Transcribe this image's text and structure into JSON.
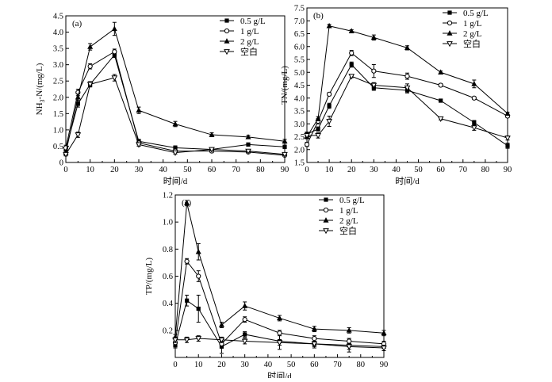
{
  "chart_data": [
    {
      "type": "line",
      "panel_label": "(a)",
      "xlabel": "时间/d",
      "ylabel": "NH3-N/(mg/L)",
      "ylabel_parts": [
        "NH",
        "3",
        "-N/(mg/L)"
      ],
      "xlim": [
        0,
        90
      ],
      "ylim": [
        0,
        4.5
      ],
      "xticks": [
        0,
        10,
        20,
        30,
        40,
        50,
        60,
        70,
        80,
        90
      ],
      "yticks": [
        0,
        0.5,
        1.0,
        1.5,
        2.0,
        2.5,
        3.0,
        3.5,
        4.0,
        4.5
      ],
      "ytick_labels": [
        "0",
        "0.5",
        "1.0",
        "1.5",
        "2.0",
        "2.5",
        "3.0",
        "3.5",
        "4.0",
        "4.5"
      ],
      "legend": "top-right",
      "x": [
        0,
        5,
        10,
        20,
        30,
        45,
        60,
        75,
        90
      ],
      "series": [
        {
          "name": "0.5 g/L",
          "marker": "square",
          "values": [
            0.4,
            1.8,
            2.4,
            3.3,
            0.65,
            0.45,
            0.4,
            0.55,
            0.48
          ],
          "errors": [
            0.08,
            0.1,
            0.08,
            0.08,
            0.06,
            0.06,
            0.05,
            0.05,
            0.05
          ]
        },
        {
          "name": "1 g/L",
          "marker": "circle",
          "values": [
            0.45,
            2.15,
            2.95,
            3.4,
            0.6,
            0.35,
            0.35,
            0.32,
            0.22
          ],
          "errors": [
            0.08,
            0.1,
            0.08,
            0.08,
            0.06,
            0.05,
            0.05,
            0.04,
            0.04
          ]
        },
        {
          "name": "2 g/L",
          "marker": "triangle-up",
          "values": [
            0.3,
            2.0,
            3.55,
            4.1,
            1.6,
            1.18,
            0.85,
            0.78,
            0.65
          ],
          "errors": [
            0.08,
            0.1,
            0.1,
            0.2,
            0.1,
            0.08,
            0.06,
            0.05,
            0.06
          ]
        },
        {
          "name": "空白",
          "marker": "triangle-down",
          "values": [
            0.25,
            0.85,
            2.4,
            2.6,
            0.55,
            0.3,
            0.4,
            0.35,
            0.25
          ],
          "errors": [
            0.05,
            0.08,
            0.08,
            0.1,
            0.05,
            0.04,
            0.04,
            0.04,
            0.04
          ]
        }
      ]
    },
    {
      "type": "line",
      "panel_label": "(b)",
      "xlabel": "时间/d",
      "ylabel": "TN/(mg/L)",
      "xlim": [
        0,
        90
      ],
      "ylim": [
        1.5,
        7.5
      ],
      "xticks": [
        0,
        10,
        20,
        30,
        40,
        50,
        60,
        70,
        80,
        90
      ],
      "yticks": [
        1.5,
        2.0,
        2.5,
        3.0,
        3.5,
        4.0,
        4.5,
        5.0,
        5.5,
        6.0,
        6.5,
        7.0,
        7.5
      ],
      "ytick_labels": [
        "1.5",
        "2.0",
        "2.5",
        "3.0",
        "3.5",
        "4.0",
        "4.5",
        "5.0",
        "5.5",
        "6.0",
        "6.5",
        "7.0",
        "7.5"
      ],
      "legend": "top-right",
      "x": [
        0,
        5,
        10,
        20,
        30,
        45,
        60,
        75,
        90
      ],
      "series": [
        {
          "name": "0.5 g/L",
          "marker": "square",
          "values": [
            2.6,
            2.8,
            3.7,
            5.3,
            4.4,
            4.3,
            3.9,
            3.05,
            2.15
          ],
          "errors": [
            0.08,
            0.08,
            0.1,
            0.1,
            0.1,
            0.1,
            0.06,
            0.08,
            0.1
          ]
        },
        {
          "name": "1 g/L",
          "marker": "circle",
          "values": [
            2.2,
            3.1,
            4.15,
            5.75,
            5.05,
            4.85,
            4.5,
            4.0,
            3.3
          ],
          "errors": [
            0.08,
            0.1,
            0.06,
            0.1,
            0.25,
            0.12,
            0.06,
            0.05,
            0.06
          ]
        },
        {
          "name": "2 g/L",
          "marker": "triangle-up",
          "values": [
            2.5,
            3.2,
            6.8,
            6.6,
            6.35,
            5.95,
            5.0,
            4.55,
            3.4
          ],
          "errors": [
            0.08,
            0.08,
            0.06,
            0.05,
            0.1,
            0.08,
            0.05,
            0.15,
            0.05
          ]
        },
        {
          "name": "空白",
          "marker": "triangle-down",
          "values": [
            2.55,
            2.55,
            3.1,
            4.85,
            4.5,
            4.4,
            3.2,
            2.85,
            2.45
          ],
          "errors": [
            0.08,
            0.1,
            0.2,
            0.06,
            0.1,
            0.15,
            0.05,
            0.1,
            0.08
          ]
        }
      ]
    },
    {
      "type": "line",
      "panel_label": "(c)",
      "xlabel": "时间/d",
      "ylabel": "TP/(mg/L)",
      "xlim": [
        0,
        90
      ],
      "ylim": [
        0,
        1.2
      ],
      "xticks": [
        0,
        10,
        20,
        30,
        40,
        50,
        60,
        70,
        80,
        90
      ],
      "yticks": [
        0.2,
        0.4,
        0.6,
        0.8,
        1.0,
        1.2
      ],
      "ytick_labels": [
        "0.2",
        "0.4",
        "0.6",
        "0.8",
        "1.0",
        "1.2"
      ],
      "legend": "top-right",
      "x": [
        0,
        5,
        10,
        20,
        30,
        45,
        60,
        75,
        90
      ],
      "series": [
        {
          "name": "0.5 g/L",
          "marker": "square",
          "values": [
            0.09,
            0.42,
            0.36,
            0.08,
            0.17,
            0.12,
            0.1,
            0.09,
            0.08
          ],
          "errors": [
            0.02,
            0.04,
            0.1,
            0.05,
            0.02,
            0.06,
            0.03,
            0.05,
            0.03
          ]
        },
        {
          "name": "1 g/L",
          "marker": "circle",
          "values": [
            0.11,
            0.71,
            0.6,
            0.1,
            0.28,
            0.18,
            0.14,
            0.12,
            0.1
          ],
          "errors": [
            0.02,
            0.02,
            0.04,
            0.02,
            0.02,
            0.02,
            0.02,
            0.02,
            0.02
          ]
        },
        {
          "name": "2 g/L",
          "marker": "triangle-up",
          "values": [
            0.15,
            1.14,
            0.78,
            0.24,
            0.38,
            0.29,
            0.21,
            0.2,
            0.18
          ],
          "errors": [
            0.02,
            0.02,
            0.06,
            0.02,
            0.03,
            0.02,
            0.02,
            0.02,
            0.02
          ]
        },
        {
          "name": "空白",
          "marker": "triangle-down",
          "values": [
            0.13,
            0.13,
            0.14,
            0.13,
            0.12,
            0.11,
            0.1,
            0.08,
            0.07
          ],
          "errors": [
            0.02,
            0.02,
            0.02,
            0.02,
            0.02,
            0.02,
            0.02,
            0.02,
            0.02
          ]
        }
      ]
    }
  ]
}
